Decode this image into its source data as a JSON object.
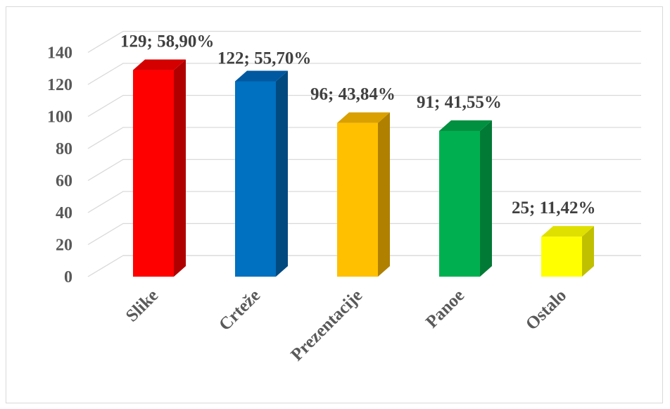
{
  "chart_data": {
    "type": "bar",
    "style": "3d-column",
    "categories": [
      "Slike",
      "Crteže",
      "Prezentacije",
      "Panoe",
      "Ostalo"
    ],
    "values": [
      129,
      122,
      96,
      91,
      25
    ],
    "data_labels": [
      "129; 58,90%",
      "122; 55,70%",
      "96; 43,84%",
      "91; 41,55%",
      "25; 11,42%"
    ],
    "y_ticks": [
      "0",
      "20",
      "40",
      "60",
      "80",
      "100",
      "120",
      "140"
    ],
    "ylim": [
      0,
      140
    ],
    "grid": true,
    "legend": "none",
    "colors": {
      "front": [
        "#ff0000",
        "#0070c0",
        "#ffc000",
        "#00b050",
        "#ffff00"
      ],
      "side": [
        "#b00000",
        "#004a80",
        "#b08000",
        "#007a35",
        "#c0c000"
      ],
      "top": [
        "#d40000",
        "#0058a0",
        "#d9a000",
        "#009040",
        "#e0e000"
      ]
    }
  }
}
